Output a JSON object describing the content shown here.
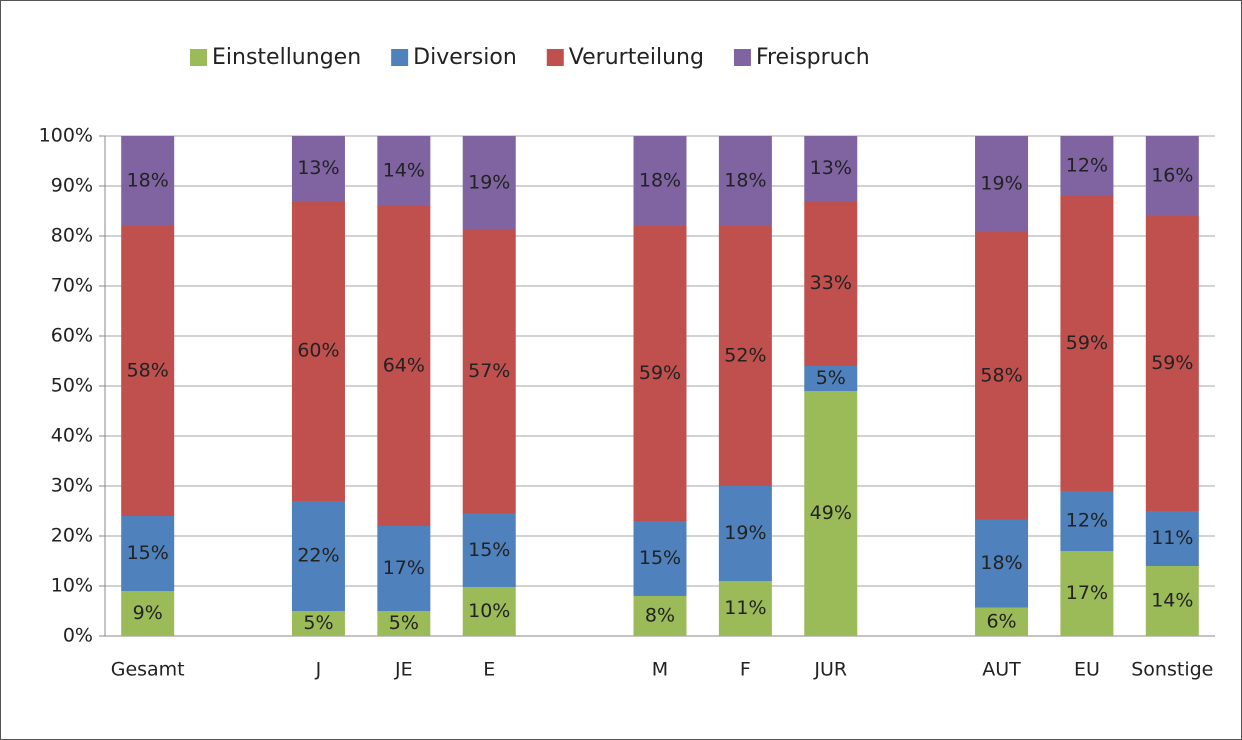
{
  "chart_data": {
    "type": "stacked_bar",
    "categories": [
      "Gesamt",
      null,
      "J",
      "JE",
      "E",
      null,
      "M",
      "F",
      "JUR",
      null,
      "AUT",
      "EU",
      "Sonstige"
    ],
    "series": [
      {
        "name": "Einstellungen",
        "color": "#9bbb59",
        "values": [
          9,
          null,
          5,
          5,
          9.8,
          null,
          8,
          11,
          49,
          null,
          5.7,
          17,
          14
        ],
        "value_labels": [
          "9%",
          null,
          "5%",
          "5%",
          "10%",
          null,
          "8%",
          "11%",
          "49%",
          null,
          "6%",
          "17%",
          "14%"
        ]
      },
      {
        "name": "Diversion",
        "color": "#4f81bd",
        "values": [
          15,
          null,
          22,
          17,
          14.7,
          null,
          15,
          19,
          5,
          null,
          17.6,
          12,
          11
        ],
        "value_labels": [
          "15%",
          null,
          "22%",
          "17%",
          "15%",
          null,
          "15%",
          "19%",
          "5%",
          null,
          "18%",
          "12%",
          "11%"
        ]
      },
      {
        "name": "Verurteilung",
        "color": "#c0504d",
        "values": [
          58,
          null,
          60,
          64,
          56.8,
          null,
          59,
          52,
          33,
          null,
          57.5,
          59,
          59
        ],
        "value_labels": [
          "58%",
          null,
          "60%",
          "64%",
          "57%",
          null,
          "59%",
          "52%",
          "33%",
          null,
          "58%",
          "59%",
          "59%"
        ]
      },
      {
        "name": "Freispruch",
        "color": "#8064a2",
        "values": [
          18,
          null,
          13,
          14,
          18.7,
          null,
          18,
          18,
          13,
          null,
          19.2,
          12,
          16
        ],
        "value_labels": [
          "18%",
          null,
          "13%",
          "14%",
          "19%",
          null,
          "18%",
          "18%",
          "13%",
          null,
          "19%",
          "12%",
          "16%"
        ]
      }
    ],
    "ylim": [
      0,
      100
    ],
    "yticks": [
      {
        "value": 0,
        "label": "0%"
      },
      {
        "value": 10,
        "label": "10%"
      },
      {
        "value": 20,
        "label": "20%"
      },
      {
        "value": 30,
        "label": "30%"
      },
      {
        "value": 40,
        "label": "40%"
      },
      {
        "value": 50,
        "label": "50%"
      },
      {
        "value": 60,
        "label": "60%"
      },
      {
        "value": 70,
        "label": "70%"
      },
      {
        "value": 80,
        "label": "80%"
      },
      {
        "value": 90,
        "label": "90%"
      },
      {
        "value": 100,
        "label": "100%"
      }
    ],
    "grid": true,
    "legend": "top"
  }
}
